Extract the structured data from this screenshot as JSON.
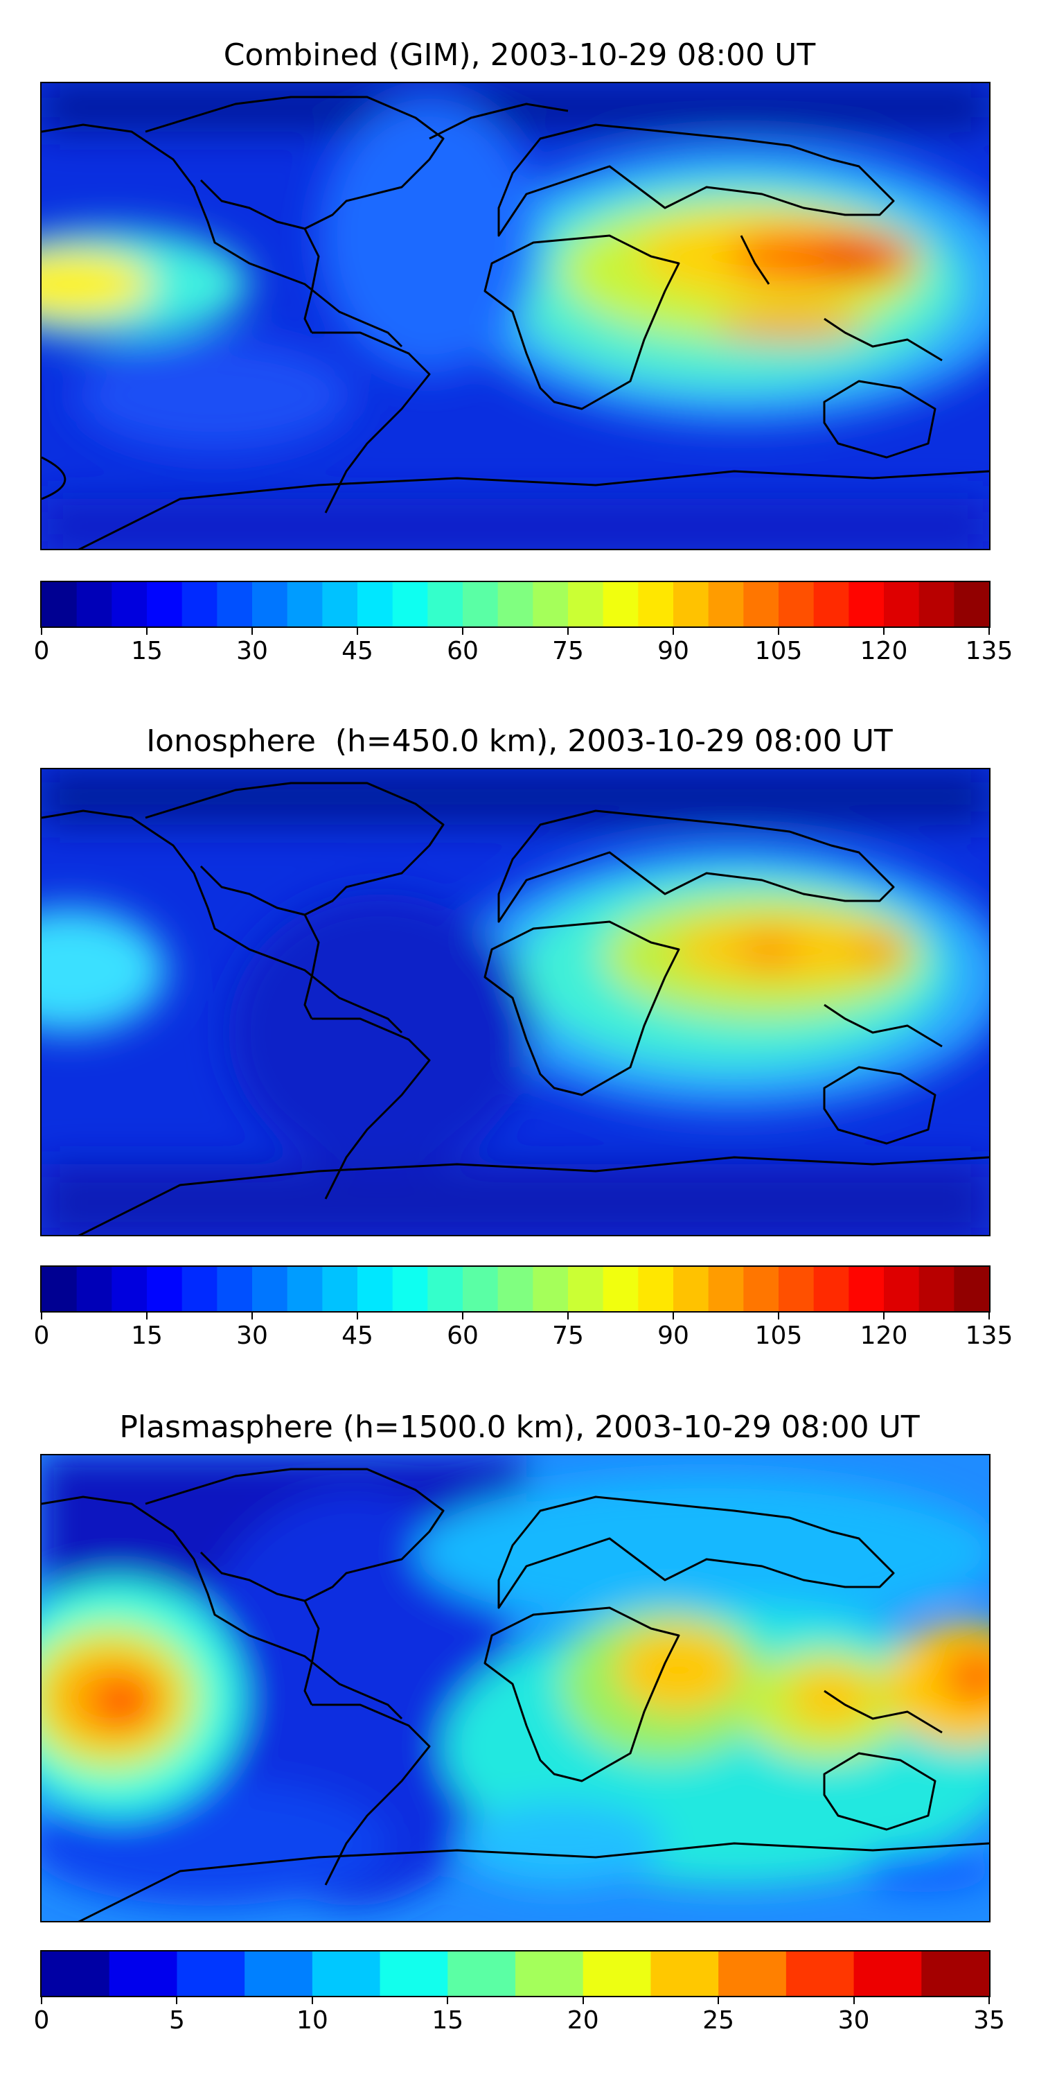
{
  "panels": [
    {
      "id": "combined",
      "title": "Combined (GIM), 2003-10-29 08:00 UT",
      "colorbar": {
        "min": 0,
        "max": 135,
        "levels": 27,
        "ticks": [
          "0",
          "15",
          "30",
          "45",
          "60",
          "75",
          "90",
          "105",
          "120",
          "135"
        ]
      }
    },
    {
      "id": "ionosphere",
      "title": "Ionosphere  (h=450.0 km), 2003-10-29 08:00 UT",
      "colorbar": {
        "min": 0,
        "max": 135,
        "levels": 27,
        "ticks": [
          "0",
          "15",
          "30",
          "45",
          "60",
          "75",
          "90",
          "105",
          "120",
          "135"
        ]
      }
    },
    {
      "id": "plasmasphere",
      "title": "Plasmasphere (h=1500.0 km), 2003-10-29 08:00 UT",
      "colorbar": {
        "min": 0,
        "max": 35,
        "levels": 14,
        "ticks": [
          "0",
          "5",
          "10",
          "15",
          "20",
          "25",
          "30",
          "35"
        ]
      }
    }
  ],
  "colormap": "jet",
  "colors": {
    "background_low": "#0a2bd8",
    "coastline": "#000000"
  }
}
